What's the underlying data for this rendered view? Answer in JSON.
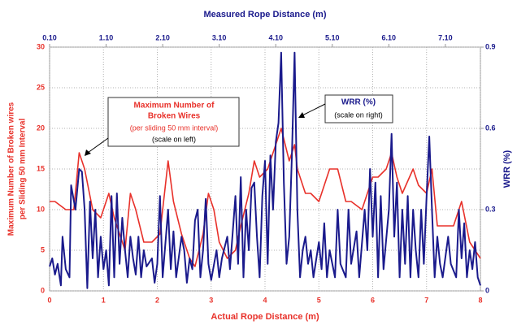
{
  "chart_data": {
    "type": "line",
    "title": "Measured Rope Distance (m)",
    "xlabel": "Actual Rope Distance (m)",
    "ylabel": [
      "Maximum Number of Broken wires",
      "per  Sliding 50 mm Interval"
    ],
    "y2label": "WRR (%)",
    "xlim": [
      0,
      8
    ],
    "xticks": [
      0,
      1,
      2,
      3,
      4,
      5,
      6,
      7,
      8
    ],
    "x2lim": [
      0.1,
      7.72
    ],
    "x2ticks": [
      {
        "value": 0.1,
        "label": "0.10"
      },
      {
        "value": 1.1,
        "label": "1.10"
      },
      {
        "value": 2.1,
        "label": "2.10"
      },
      {
        "value": 3.1,
        "label": "3.10"
      },
      {
        "value": 4.1,
        "label": "4.10"
      },
      {
        "value": 5.1,
        "label": "5.10"
      },
      {
        "value": 6.1,
        "label": "6.10"
      },
      {
        "value": 7.1,
        "label": "7.10"
      }
    ],
    "ylim": [
      0,
      30
    ],
    "yticks": [
      0,
      5,
      10,
      15,
      20,
      25,
      30
    ],
    "y2lim": [
      0,
      0.9
    ],
    "y2ticks": [
      0,
      0.3,
      0.6,
      0.9
    ],
    "grid": true,
    "annotations": [
      {
        "lines": [
          "Maximum Number of",
          "Broken Wires",
          "(per sliding 50 mm interval)",
          "(scale on left)"
        ]
      },
      {
        "lines": [
          "WRR (%)",
          "(scale on right)"
        ]
      }
    ],
    "series": [
      {
        "color": "#e8312a",
        "axis": "y",
        "x": [
          0,
          0.1,
          0.3,
          0.45,
          0.55,
          0.65,
          0.8,
          0.95,
          1.1,
          1.2,
          1.4,
          1.5,
          1.6,
          1.75,
          1.9,
          2.05,
          2.2,
          2.3,
          2.45,
          2.6,
          2.7,
          2.85,
          2.95,
          3.05,
          3.15,
          3.3,
          3.45,
          3.55,
          3.7,
          3.8,
          3.9,
          4.05,
          4.15,
          4.3,
          4.45,
          4.55,
          4.6,
          4.75,
          4.85,
          5.0,
          5.1,
          5.2,
          5.35,
          5.5,
          5.6,
          5.8,
          5.9,
          6.0,
          6.1,
          6.25,
          6.35,
          6.45,
          6.55,
          6.75,
          6.85,
          7.0,
          7.1,
          7.2,
          7.35,
          7.5,
          7.65,
          7.8,
          7.9,
          8.0
        ],
        "values": [
          11,
          11,
          10,
          10,
          17,
          15,
          10,
          9,
          12,
          9,
          5,
          12,
          10,
          6,
          6,
          7,
          16,
          11,
          7,
          4,
          3,
          7,
          12,
          10,
          6,
          4,
          5,
          8,
          12,
          16,
          14,
          15,
          17,
          20,
          16,
          18,
          15,
          12,
          12,
          11,
          13,
          15,
          15,
          11,
          11,
          10,
          12,
          14,
          14,
          15,
          17,
          14,
          12,
          15,
          13,
          12,
          15,
          8,
          8,
          8,
          11,
          6,
          5,
          4
        ]
      },
      {
        "color": "#1a1a8c",
        "axis": "y2",
        "x": [
          0,
          0.05,
          0.1,
          0.15,
          0.21,
          0.24,
          0.3,
          0.37,
          0.4,
          0.48,
          0.55,
          0.6,
          0.65,
          0.7,
          0.75,
          0.8,
          0.85,
          0.9,
          0.95,
          1.0,
          1.05,
          1.1,
          1.15,
          1.2,
          1.25,
          1.3,
          1.35,
          1.4,
          1.45,
          1.5,
          1.55,
          1.6,
          1.65,
          1.7,
          1.75,
          1.8,
          1.9,
          1.95,
          2.0,
          2.05,
          2.1,
          2.2,
          2.25,
          2.3,
          2.35,
          2.45,
          2.5,
          2.55,
          2.6,
          2.65,
          2.7,
          2.75,
          2.8,
          2.85,
          2.9,
          2.95,
          3.0,
          3.1,
          3.15,
          3.2,
          3.3,
          3.35,
          3.45,
          3.5,
          3.55,
          3.6,
          3.65,
          3.7,
          3.75,
          3.8,
          3.85,
          3.9,
          3.95,
          4.0,
          4.05,
          4.1,
          4.15,
          4.2,
          4.25,
          4.3,
          4.35,
          4.4,
          4.45,
          4.5,
          4.55,
          4.6,
          4.65,
          4.7,
          4.75,
          4.8,
          4.85,
          4.9,
          5.0,
          5.05,
          5.1,
          5.15,
          5.2,
          5.3,
          5.35,
          5.4,
          5.5,
          5.55,
          5.6,
          5.7,
          5.75,
          5.85,
          5.9,
          5.95,
          6.0,
          6.05,
          6.1,
          6.15,
          6.2,
          6.3,
          6.35,
          6.4,
          6.45,
          6.5,
          6.55,
          6.6,
          6.65,
          6.7,
          6.75,
          6.8,
          6.85,
          6.9,
          6.95,
          7.0,
          7.05,
          7.1,
          7.15,
          7.2,
          7.25,
          7.3,
          7.4,
          7.45,
          7.55,
          7.6,
          7.65,
          7.7,
          7.75,
          7.8,
          7.85,
          7.9,
          7.95,
          8.0
        ],
        "values": [
          0.09,
          0.12,
          0.06,
          0.1,
          0.02,
          0.2,
          0.08,
          0.05,
          0.39,
          0.3,
          0.45,
          0.44,
          0.3,
          0.01,
          0.33,
          0.12,
          0.3,
          0.05,
          0.2,
          0.08,
          0.15,
          0.02,
          0.35,
          0.05,
          0.36,
          0.1,
          0.27,
          0.15,
          0.05,
          0.2,
          0.12,
          0.06,
          0.2,
          0.05,
          0.15,
          0.09,
          0.12,
          0.03,
          0.1,
          0.35,
          0.05,
          0.3,
          0.08,
          0.22,
          0.05,
          0.2,
          0.15,
          0.03,
          0.12,
          0.08,
          0.26,
          0.3,
          0.05,
          0.15,
          0.34,
          0.1,
          0.04,
          0.15,
          0.05,
          0.12,
          0.2,
          0.08,
          0.35,
          0.1,
          0.42,
          0.05,
          0.3,
          0.15,
          0.38,
          0.4,
          0.2,
          0.05,
          0.35,
          0.48,
          0.1,
          0.5,
          0.3,
          0.55,
          0.62,
          0.88,
          0.4,
          0.1,
          0.2,
          0.5,
          0.88,
          0.3,
          0.05,
          0.15,
          0.2,
          0.1,
          0.15,
          0.05,
          0.18,
          0.08,
          0.25,
          0.05,
          0.15,
          0.05,
          0.3,
          0.1,
          0.05,
          0.3,
          0.1,
          0.22,
          0.05,
          0.3,
          0.15,
          0.45,
          0.2,
          0.4,
          0.05,
          0.35,
          0.08,
          0.3,
          0.58,
          0.2,
          0.4,
          0.05,
          0.3,
          0.1,
          0.35,
          0.05,
          0.3,
          0.15,
          0.05,
          0.3,
          0.1,
          0.35,
          0.57,
          0.3,
          0.05,
          0.2,
          0.1,
          0.05,
          0.2,
          0.1,
          0.05,
          0.3,
          0.12,
          0.25,
          0.05,
          0.15,
          0.08,
          0.18,
          0.05,
          0.02
        ]
      }
    ]
  }
}
